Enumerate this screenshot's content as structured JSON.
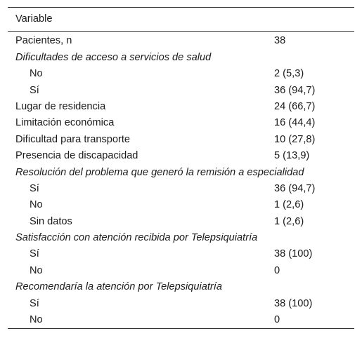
{
  "table": {
    "header": "Variable",
    "rows": [
      {
        "label": "Pacientes, n",
        "value": "38",
        "kind": "row"
      },
      {
        "label": "Dificultades de acceso a servicios de salud",
        "value": "",
        "kind": "section"
      },
      {
        "label": "No",
        "value": "2 (5,3)",
        "kind": "sub"
      },
      {
        "label": "Sí",
        "value": "36 (94,7)",
        "kind": "sub"
      },
      {
        "label": "Lugar de residencia",
        "value": "24 (66,7)",
        "kind": "row"
      },
      {
        "label": "Limitación económica",
        "value": "16 (44,4)",
        "kind": "row"
      },
      {
        "label": "Dificultad para transporte",
        "value": "10 (27,8)",
        "kind": "row"
      },
      {
        "label": "Presencia de discapacidad",
        "value": "5 (13,9)",
        "kind": "row"
      },
      {
        "label": "Resolución del problema que generó la remisión a especialidad",
        "value": "",
        "kind": "section"
      },
      {
        "label": "Sí",
        "value": "36 (94,7)",
        "kind": "sub"
      },
      {
        "label": "No",
        "value": "1 (2,6)",
        "kind": "sub"
      },
      {
        "label": "Sin datos",
        "value": "1 (2,6)",
        "kind": "sub"
      },
      {
        "label": "Satisfacción con atención recibida por Telepsiquiatría",
        "value": "",
        "kind": "section"
      },
      {
        "label": "Sí",
        "value": "38 (100)",
        "kind": "sub"
      },
      {
        "label": "No",
        "value": "0",
        "kind": "sub"
      },
      {
        "label": "Recomendaría la atención por Telepsiquiatría",
        "value": "",
        "kind": "section"
      },
      {
        "label": "Sí",
        "value": "38 (100)",
        "kind": "sub"
      },
      {
        "label": "No",
        "value": "0",
        "kind": "sub"
      }
    ]
  }
}
